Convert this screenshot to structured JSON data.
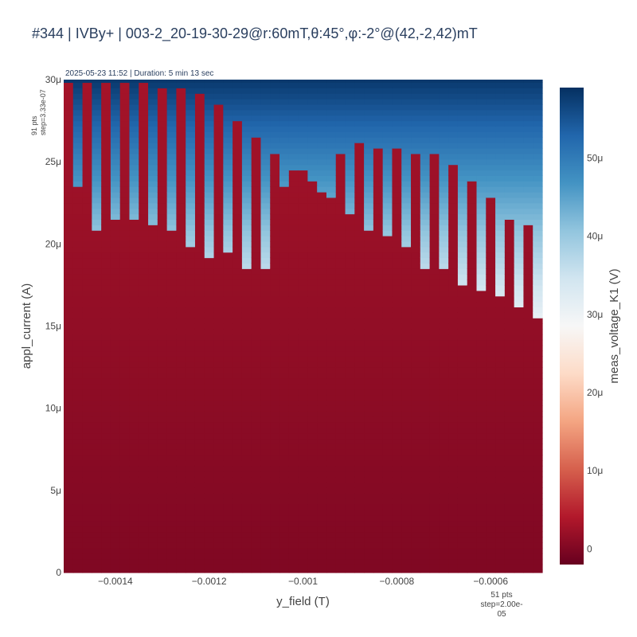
{
  "chart_data": {
    "type": "heatmap",
    "title": "#344 | IVBy+ | 003-2_20-19-30-29@r:60mT,θ:45°,φ:-2°@(42,-2,42)mT",
    "subtitle": "2025-05-23 11:52 | Duration: 5 min 13 sec",
    "xlabel": "y_field (T)",
    "ylabel": "appl_current (A)",
    "colorbar_label": "meas_voltage_K1 (V)",
    "x_points_note": [
      "51 pts",
      "step=2.00e-05"
    ],
    "y_points_note": [
      "91 pts",
      "step=3.33e-07"
    ],
    "x_range": [
      -0.0015,
      -0.0005
    ],
    "y_range": [
      0,
      3e-05
    ],
    "x_ticks": [
      {
        "value": -0.0014,
        "label": "−0.0014"
      },
      {
        "value": -0.0012,
        "label": "−0.0012"
      },
      {
        "value": -0.001,
        "label": "−0.001"
      },
      {
        "value": -0.0008,
        "label": "−0.0008"
      },
      {
        "value": -0.0006,
        "label": "−0.0006"
      }
    ],
    "y_ticks": [
      {
        "value": 0,
        "label": "0"
      },
      {
        "value": 5e-06,
        "label": "5μ"
      },
      {
        "value": 1e-05,
        "label": "10μ"
      },
      {
        "value": 1.5e-05,
        "label": "15μ"
      },
      {
        "value": 2e-05,
        "label": "20μ"
      },
      {
        "value": 2.5e-05,
        "label": "25μ"
      },
      {
        "value": 3e-05,
        "label": "30μ"
      }
    ],
    "colorbar_range": [
      -2e-06,
      5.9e-05
    ],
    "colorbar_ticks": [
      {
        "value": 0,
        "label": "0"
      },
      {
        "value": 1e-05,
        "label": "10μ"
      },
      {
        "value": 2e-05,
        "label": "20μ"
      },
      {
        "value": 3e-05,
        "label": "30μ"
      },
      {
        "value": 4e-05,
        "label": "40μ"
      },
      {
        "value": 5e-05,
        "label": "50μ"
      }
    ],
    "colorscale": "RdBu",
    "colorscale_stops": [
      "#67001f",
      "#b2182b",
      "#d6604d",
      "#f4a582",
      "#fddbc7",
      "#f7f7f7",
      "#d1e5f0",
      "#92c5de",
      "#4393c3",
      "#2166ac",
      "#053061"
    ],
    "x": [
      -0.0015,
      -0.00148,
      -0.00146,
      -0.00144,
      -0.00142,
      -0.0014,
      -0.00138,
      -0.00136,
      -0.00134,
      -0.00132,
      -0.0013,
      -0.00128,
      -0.00126,
      -0.00124,
      -0.00122,
      -0.0012,
      -0.00118,
      -0.00116,
      -0.00114,
      -0.00112,
      -0.0011,
      -0.00108,
      -0.00106,
      -0.00104,
      -0.00102,
      -0.001,
      -0.00098,
      -0.00096,
      -0.00094,
      -0.00092,
      -0.0009,
      -0.00088,
      -0.00086,
      -0.00084,
      -0.00082,
      -0.0008,
      -0.00078,
      -0.00076,
      -0.00074,
      -0.00072,
      -0.0007,
      -0.00068,
      -0.00066,
      -0.00064,
      -0.00062,
      -0.0006,
      -0.00058,
      -0.00056,
      -0.00054,
      -0.00052,
      -0.0005
    ],
    "switching_current": [
      3e-05,
      2.36e-05,
      3e-05,
      2.1e-05,
      3e-05,
      2.15e-05,
      3e-05,
      2.15e-05,
      3e-05,
      2.12e-05,
      2.96e-05,
      2.1e-05,
      2.96e-05,
      2e-05,
      2.91e-05,
      1.92e-05,
      2.86e-05,
      1.94e-05,
      2.74e-05,
      1.86e-05,
      2.64e-05,
      1.86e-05,
      2.54e-05,
      2.34e-05,
      2.44e-05,
      2.46e-05,
      2.37e-05,
      2.31e-05,
      2.29e-05,
      2.54e-05,
      2.19e-05,
      2.61e-05,
      2.09e-05,
      2.59e-05,
      2.04e-05,
      2.59e-05,
      1.99e-05,
      2.54e-05,
      1.86e-05,
      2.54e-05,
      1.84e-05,
      2.47e-05,
      1.74e-05,
      2.39e-05,
      1.72e-05,
      2.29e-05,
      1.69e-05,
      2.16e-05,
      1.61e-05,
      2.11e-05,
      1.54e-05
    ],
    "voltage_model": "below switching current: low voltage rising with current (≈0 to 3μV); above switching current: voltage rising with current up to ≈58μV at 30μA"
  }
}
